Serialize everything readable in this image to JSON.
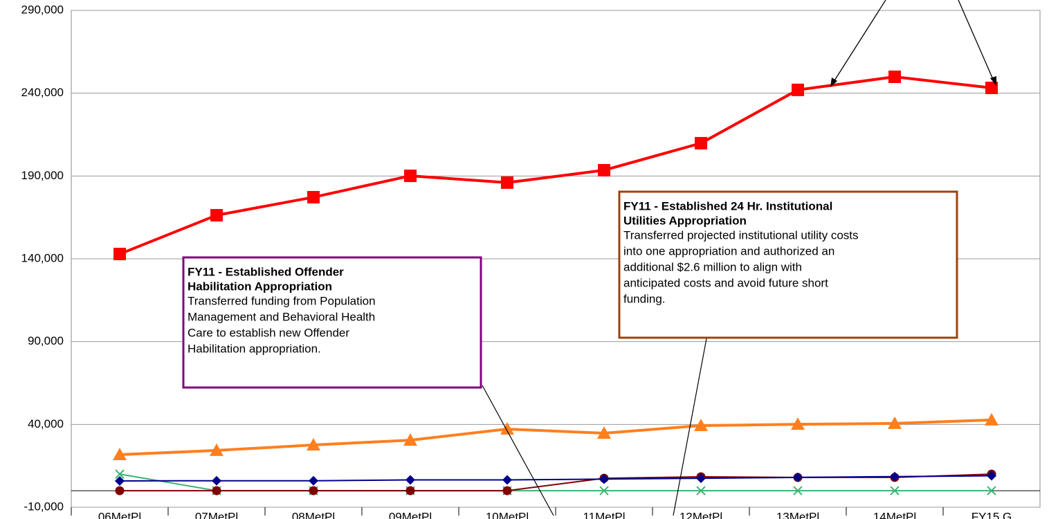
{
  "chart_data": {
    "type": "line",
    "categories": [
      "06MetPl",
      "07MetPl",
      "08MetPl",
      "09MetPl",
      "10MetPl",
      "11MetPl",
      "12MetPl",
      "13MetPl",
      "14MetPl",
      "FY15 G"
    ],
    "ylim": [
      -10000,
      290000
    ],
    "yticks": [
      {
        "value": -10000,
        "label": "-10,000"
      },
      {
        "value": 40000,
        "label": "40,000"
      },
      {
        "value": 90000,
        "label": "90,000"
      },
      {
        "value": 140000,
        "label": "140,000"
      },
      {
        "value": 190000,
        "label": "190,000"
      },
      {
        "value": 240000,
        "label": "240,000"
      },
      {
        "value": 290000,
        "label": "290,000"
      }
    ],
    "grid": true,
    "series": [
      {
        "color": "#ff0000",
        "marker": "square",
        "values": [
          142900,
          166300,
          177200,
          190100,
          186000,
          193500,
          209800,
          242000,
          249900,
          243200
        ]
      },
      {
        "color": "#ff7f1f",
        "marker": "triangle",
        "values": [
          21750,
          24300,
          27600,
          30500,
          37200,
          34700,
          39300,
          40100,
          40600,
          42700
        ]
      },
      {
        "color": "#00008b",
        "marker": "diamond",
        "values": [
          5900,
          6000,
          6000,
          6500,
          6500,
          7000,
          7500,
          8000,
          8500,
          9000
        ]
      },
      {
        "color": "#800000",
        "marker": "circle",
        "values": [
          0,
          0,
          0,
          0,
          0,
          7500,
          8400,
          8000,
          8000,
          10000
        ]
      },
      {
        "color": "#3cb371",
        "marker": "x",
        "values": [
          10000,
          0,
          0,
          0,
          0,
          0,
          0,
          0,
          0,
          0
        ]
      }
    ],
    "annotations": [
      {
        "title": [
          "FY11 - Established Offender",
          "Habilitation Appropriation"
        ],
        "text": [
          "Transferred funding from Population",
          "Management and  Behavioral Health",
          "Care to establish new Offender",
          "Habilitation appropriation."
        ],
        "color": "#800080"
      },
      {
        "title": [
          "FY11 - Established 24 Hr. Institutional",
          "Utilities Appropriation"
        ],
        "text": [
          "Transferred projected institutional utility costs",
          "into one appropriation and authorized an",
          "additional $2.6 million to align with",
          "anticipated costs and avoid future short",
          "funding."
        ],
        "color": "#a0400c"
      }
    ]
  }
}
